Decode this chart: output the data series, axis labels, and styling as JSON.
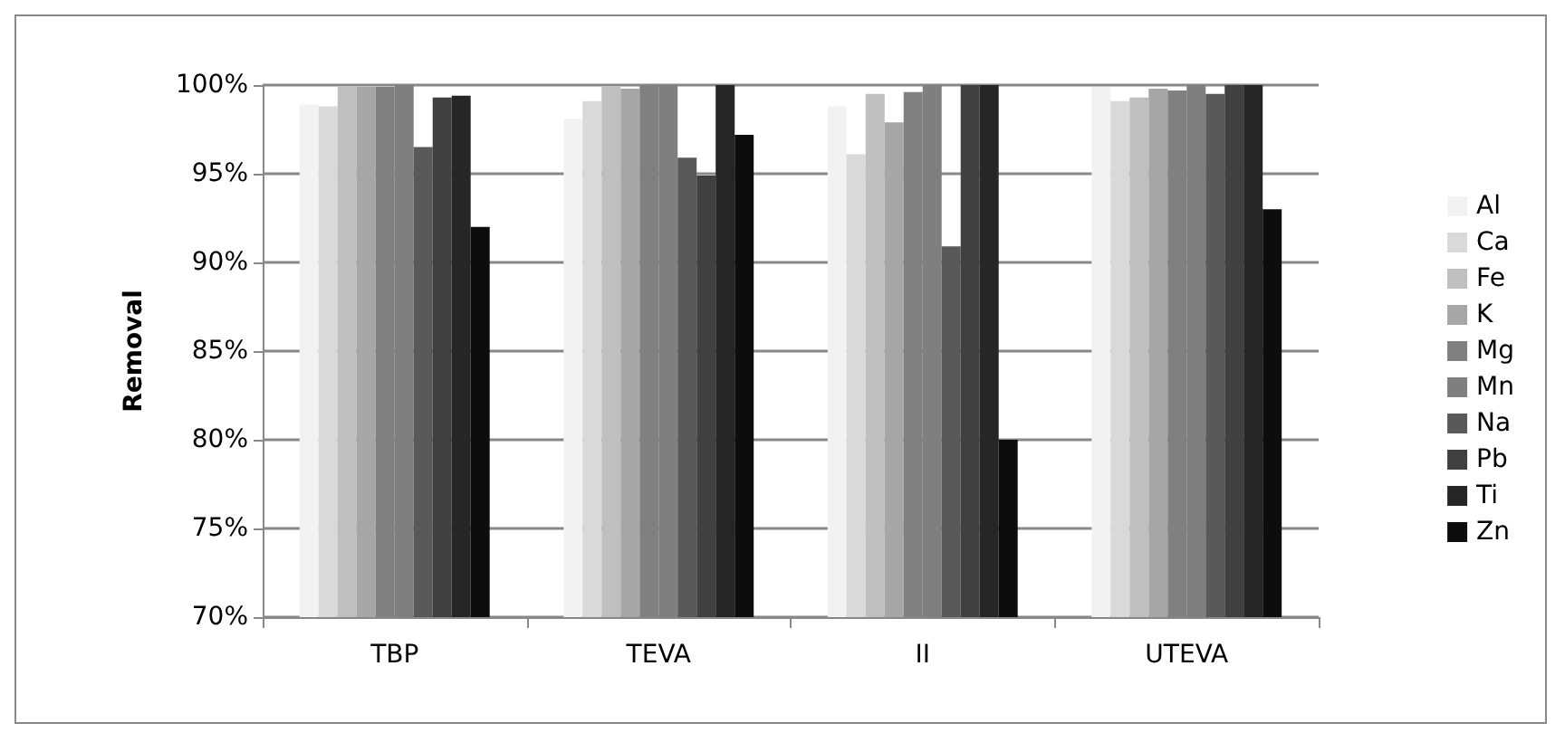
{
  "chart_data": {
    "type": "bar",
    "ylabel": "Removal",
    "categories": [
      "TBP",
      "TEVA",
      "II",
      "UTEVA"
    ],
    "series": [
      {
        "name": "Al",
        "color": "#f2f2f2",
        "values": [
          98.9,
          98.1,
          98.8,
          99.9
        ]
      },
      {
        "name": "Ca",
        "color": "#d9d9d9",
        "values": [
          98.8,
          99.1,
          96.1,
          99.1
        ]
      },
      {
        "name": "Fe",
        "color": "#bfbfbf",
        "values": [
          99.9,
          99.9,
          99.5,
          99.3
        ]
      },
      {
        "name": "K",
        "color": "#a6a6a6",
        "values": [
          99.9,
          99.8,
          97.9,
          99.8
        ]
      },
      {
        "name": "Mg",
        "color": "#808080",
        "values": [
          99.9,
          100,
          99.6,
          99.7
        ]
      },
      {
        "name": "Mn",
        "color": "#7f7f7f",
        "values": [
          100,
          100,
          100,
          100
        ]
      },
      {
        "name": "Na",
        "color": "#595959",
        "values": [
          96.5,
          95.9,
          90.9,
          99.5
        ]
      },
      {
        "name": "Pb",
        "color": "#404040",
        "values": [
          99.3,
          94.9,
          100,
          100
        ]
      },
      {
        "name": "Ti",
        "color": "#262626",
        "values": [
          99.4,
          100,
          100,
          100
        ]
      },
      {
        "name": "Zn",
        "color": "#0d0d0d",
        "values": [
          92.0,
          97.2,
          80.0,
          93.0
        ]
      }
    ],
    "ylim": [
      70,
      100
    ],
    "yticks": [
      {
        "value": 70,
        "label": "70%"
      },
      {
        "value": 75,
        "label": "75%"
      },
      {
        "value": 80,
        "label": "80%"
      },
      {
        "value": 85,
        "label": "85%"
      },
      {
        "value": 90,
        "label": "90%"
      },
      {
        "value": 95,
        "label": "95%"
      },
      {
        "value": 100,
        "label": "100%"
      }
    ],
    "grid": "y",
    "legend": "right"
  }
}
